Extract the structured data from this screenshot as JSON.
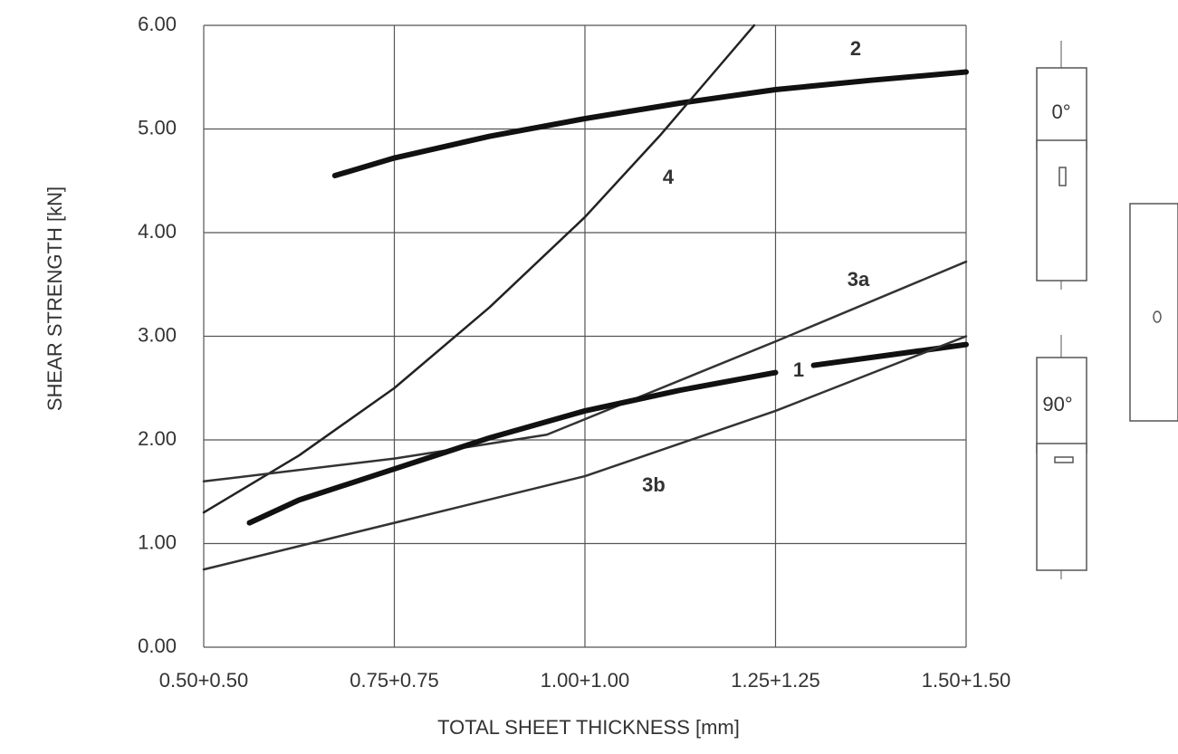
{
  "chart_data": {
    "type": "line",
    "xlabel": "TOTAL SHEET THICKNESS [mm]",
    "ylabel": "SHEAR STRENGTH [kN]",
    "xlim": [
      0.5,
      1.5
    ],
    "ylim": [
      0,
      6
    ],
    "xticks": [
      {
        "value": 0.5,
        "label": "0.50+0.50"
      },
      {
        "value": 0.75,
        "label": "0.75+0.75"
      },
      {
        "value": 1.0,
        "label": "1.00+1.00"
      },
      {
        "value": 1.25,
        "label": "1.25+1.25"
      },
      {
        "value": 1.5,
        "label": "1.50+1.50"
      }
    ],
    "yticks": [
      {
        "value": 0,
        "label": "0.00"
      },
      {
        "value": 1,
        "label": "1.00"
      },
      {
        "value": 2,
        "label": "2.00"
      },
      {
        "value": 3,
        "label": "3.00"
      },
      {
        "value": 4,
        "label": "4.00"
      },
      {
        "value": 5,
        "label": "5.00"
      },
      {
        "value": 6,
        "label": "6.00"
      }
    ],
    "grid": true,
    "series": [
      {
        "name": "2",
        "color": "#111111",
        "width": 6,
        "x": [
          0.672,
          0.75,
          0.875,
          1.0,
          1.125,
          1.25,
          1.375,
          1.5
        ],
        "values": [
          4.55,
          4.72,
          4.93,
          5.1,
          5.25,
          5.38,
          5.47,
          5.55
        ]
      },
      {
        "name": "4",
        "color": "#222222",
        "width": 2.5,
        "x": [
          0.5,
          0.625,
          0.75,
          0.875,
          1.0,
          1.1,
          1.222
        ],
        "values": [
          1.3,
          1.85,
          2.5,
          3.28,
          4.15,
          4.95,
          6.0
        ]
      },
      {
        "name": "3a",
        "color": "#333333",
        "width": 2.5,
        "x": [
          0.5,
          0.75,
          0.95,
          1.0,
          1.25,
          1.5
        ],
        "values": [
          1.6,
          1.82,
          2.05,
          2.2,
          2.95,
          3.72
        ]
      },
      {
        "name": "1",
        "color": "#111111",
        "width": 6,
        "x": [
          0.56,
          0.625,
          0.75,
          0.875,
          1.0,
          1.125,
          1.25,
          1.275,
          1.3,
          1.4,
          1.5
        ],
        "values": [
          1.2,
          1.42,
          1.72,
          2.02,
          2.28,
          2.48,
          2.65,
          null,
          2.72,
          2.82,
          2.92
        ]
      },
      {
        "name": "3b",
        "color": "#333333",
        "width": 2.5,
        "x": [
          0.5,
          0.75,
          1.0,
          1.25,
          1.5
        ],
        "values": [
          0.75,
          1.2,
          1.65,
          2.28,
          3.0
        ]
      }
    ],
    "specimen_labels": [
      "0°",
      "90°"
    ]
  }
}
